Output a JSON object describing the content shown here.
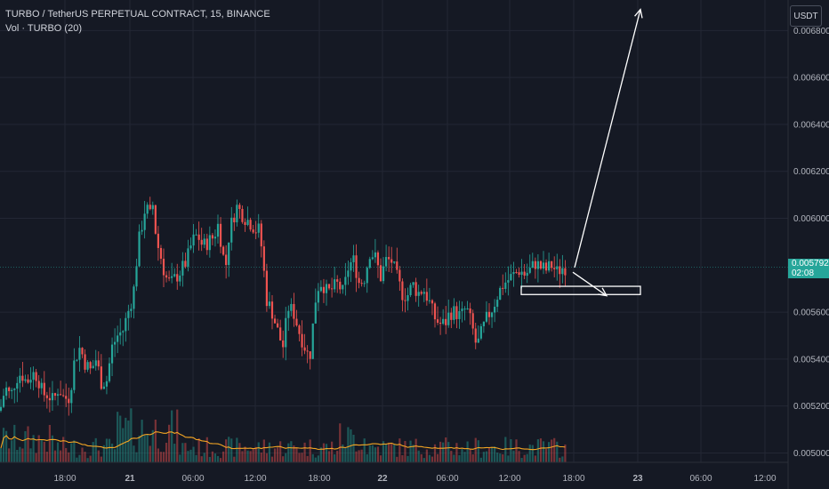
{
  "header": {
    "symbol_line": "TURBO / TetherUS PERPETUAL CONTRACT, 15, BINANCE",
    "volume_line": "Vol · TURBO (20)"
  },
  "currency_button": "USDT",
  "last_price": {
    "value": "0.005792",
    "countdown": "02:08"
  },
  "colors": {
    "background": "#151924",
    "up": "#26a69a",
    "down": "#ef5350",
    "volume_ma": "#f5a623",
    "drawing": "#ffffff",
    "grid": "#232734"
  },
  "chart_data": {
    "type": "candlestick",
    "grid": true,
    "y_axis": {
      "side": "right",
      "range": [
        0.00496,
        0.00693
      ],
      "ticks": [
        "0.006800",
        "0.006600",
        "0.006400",
        "0.006200",
        "0.006000",
        "0.005600",
        "0.005400",
        "0.005200",
        "0.005000"
      ]
    },
    "x_axis": {
      "ticks": [
        "18:00",
        "21",
        "06:00",
        "12:00",
        "18:00",
        "22",
        "06:00",
        "12:00",
        "18:00",
        "23",
        "06:00",
        "12:00"
      ]
    },
    "price_path": [
      [
        0,
        0.00518
      ],
      [
        6,
        0.00528
      ],
      [
        12,
        0.00524
      ],
      [
        18,
        0.00532
      ],
      [
        24,
        0.00534
      ],
      [
        30,
        0.0053
      ],
      [
        36,
        0.00534
      ],
      [
        42,
        0.00533
      ],
      [
        48,
        0.00525
      ],
      [
        54,
        0.00525
      ],
      [
        60,
        0.00522
      ],
      [
        66,
        0.00528
      ],
      [
        72,
        0.00523
      ],
      [
        78,
        0.00524
      ],
      [
        84,
        0.0054
      ],
      [
        90,
        0.00545
      ],
      [
        96,
        0.00538
      ],
      [
        102,
        0.00535
      ],
      [
        108,
        0.0054
      ],
      [
        114,
        0.0053
      ],
      [
        120,
        0.00531
      ],
      [
        126,
        0.00545
      ],
      [
        132,
        0.0055
      ],
      [
        138,
        0.00552
      ],
      [
        144,
        0.0056
      ],
      [
        150,
        0.00568
      ],
      [
        153,
        0.0058
      ],
      [
        156,
        0.0059
      ],
      [
        160,
        0.00598
      ],
      [
        164,
        0.00606
      ],
      [
        168,
        0.006
      ],
      [
        172,
        0.00606
      ],
      [
        176,
        0.0059
      ],
      [
        180,
        0.00585
      ],
      [
        186,
        0.00575
      ],
      [
        192,
        0.00572
      ],
      [
        198,
        0.00575
      ],
      [
        204,
        0.00578
      ],
      [
        210,
        0.00582
      ],
      [
        216,
        0.0059
      ],
      [
        222,
        0.00593
      ],
      [
        228,
        0.00588
      ],
      [
        234,
        0.0059
      ],
      [
        240,
        0.00592
      ],
      [
        246,
        0.00598
      ],
      [
        250,
        0.00585
      ],
      [
        254,
        0.0058
      ],
      [
        258,
        0.00595
      ],
      [
        262,
        0.006
      ],
      [
        266,
        0.00605
      ],
      [
        270,
        0.00603
      ],
      [
        276,
        0.006
      ],
      [
        282,
        0.00598
      ],
      [
        288,
        0.00595
      ],
      [
        292,
        0.00595
      ],
      [
        296,
        0.0058
      ],
      [
        300,
        0.00565
      ],
      [
        306,
        0.0056
      ],
      [
        312,
        0.00552
      ],
      [
        318,
        0.00545
      ],
      [
        324,
        0.00562
      ],
      [
        330,
        0.0056
      ],
      [
        336,
        0.00552
      ],
      [
        342,
        0.00546
      ],
      [
        348,
        0.0054
      ],
      [
        352,
        0.00555
      ],
      [
        356,
        0.0057
      ],
      [
        362,
        0.00573
      ],
      [
        368,
        0.00568
      ],
      [
        374,
        0.0057
      ],
      [
        380,
        0.00572
      ],
      [
        386,
        0.00568
      ],
      [
        392,
        0.0058
      ],
      [
        398,
        0.00582
      ],
      [
        404,
        0.00572
      ],
      [
        410,
        0.00575
      ],
      [
        416,
        0.00586
      ],
      [
        422,
        0.00583
      ],
      [
        428,
        0.00575
      ],
      [
        434,
        0.00582
      ],
      [
        440,
        0.00582
      ],
      [
        446,
        0.00575
      ],
      [
        452,
        0.00568
      ],
      [
        458,
        0.00567
      ],
      [
        464,
        0.00572
      ],
      [
        470,
        0.00568
      ],
      [
        476,
        0.0057
      ],
      [
        482,
        0.00565
      ],
      [
        488,
        0.00558
      ],
      [
        494,
        0.00555
      ],
      [
        500,
        0.00555
      ],
      [
        506,
        0.0056
      ],
      [
        512,
        0.0056
      ],
      [
        518,
        0.00558
      ],
      [
        524,
        0.00562
      ],
      [
        530,
        0.00555
      ],
      [
        536,
        0.00545
      ],
      [
        542,
        0.00552
      ],
      [
        548,
        0.00558
      ],
      [
        554,
        0.00562
      ],
      [
        560,
        0.00568
      ],
      [
        566,
        0.00572
      ],
      [
        572,
        0.00574
      ],
      [
        578,
        0.00576
      ],
      [
        584,
        0.00578
      ],
      [
        590,
        0.00576
      ],
      [
        596,
        0.00578
      ],
      [
        602,
        0.00581
      ],
      [
        608,
        0.00579
      ],
      [
        614,
        0.00578
      ],
      [
        620,
        0.0058
      ],
      [
        626,
        0.00577
      ],
      [
        632,
        0.00579
      ],
      [
        636,
        0.005792
      ]
    ],
    "drawings": [
      {
        "type": "arrow",
        "from": [
          646,
          0.00579
        ],
        "to": [
          720,
          0.00689
        ]
      },
      {
        "type": "arrow",
        "from": [
          644,
          0.00577
        ],
        "to": [
          682,
          0.00567
        ]
      },
      {
        "type": "rectangle",
        "x": [
          586,
          720
        ],
        "y": [
          0.005675,
          0.00571
        ]
      }
    ]
  }
}
